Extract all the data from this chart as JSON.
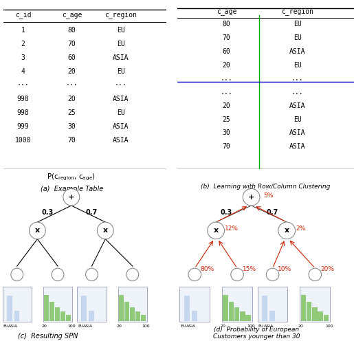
{
  "table_a": {
    "headers": [
      "c_id",
      "c_age",
      "c_region"
    ],
    "rows": [
      [
        "1",
        "80",
        "EU"
      ],
      [
        "2",
        "70",
        "EU"
      ],
      [
        "3",
        "60",
        "ASIA"
      ],
      [
        "4",
        "20",
        "EU"
      ],
      [
        "...",
        "...",
        "..."
      ],
      [
        "998",
        "20",
        "ASIA"
      ],
      [
        "998",
        "25",
        "EU"
      ],
      [
        "999",
        "30",
        "ASIA"
      ],
      [
        "1000",
        "70",
        "ASIA"
      ]
    ],
    "caption": "(a)  Example Table"
  },
  "table_b": {
    "headers": [
      "c_age",
      "c_region"
    ],
    "rows": [
      [
        "80",
        "EU"
      ],
      [
        "70",
        "EU"
      ],
      [
        "60",
        "ASIA"
      ],
      [
        "20",
        "EU"
      ],
      [
        "...",
        "..."
      ],
      [
        "...",
        "..."
      ],
      [
        "20",
        "ASIA"
      ],
      [
        "25",
        "EU"
      ],
      [
        "30",
        "ASIA"
      ],
      [
        "70",
        "ASIA"
      ]
    ],
    "caption": "(b)  Learning with Row/Column Clustering",
    "row_sep": 5,
    "col_sep": 1,
    "green_line_col": 1,
    "blue_line_row": 5
  },
  "spn_c": {
    "caption": "(c)  Resulting SPN",
    "title": "P(c_region, c_age)"
  },
  "spn_d": {
    "caption": "(d)  Probability of European\nCustomers younger than 30",
    "percentages": {
      "root": "5%",
      "left_x": "12%",
      "right_x": "2%",
      "ll": "80%",
      "lm": "15%",
      "rl": "10%",
      "rm": "20%"
    }
  },
  "colors": {
    "blue_hist": "#c5d8f0",
    "green_hist": "#90c978",
    "red_arrow": "#cc2200",
    "table_line": "#000000",
    "green_col_line": "#00aa00",
    "blue_row_line": "#0000cc",
    "node_circle": "#ffffff",
    "node_border": "#888888"
  }
}
